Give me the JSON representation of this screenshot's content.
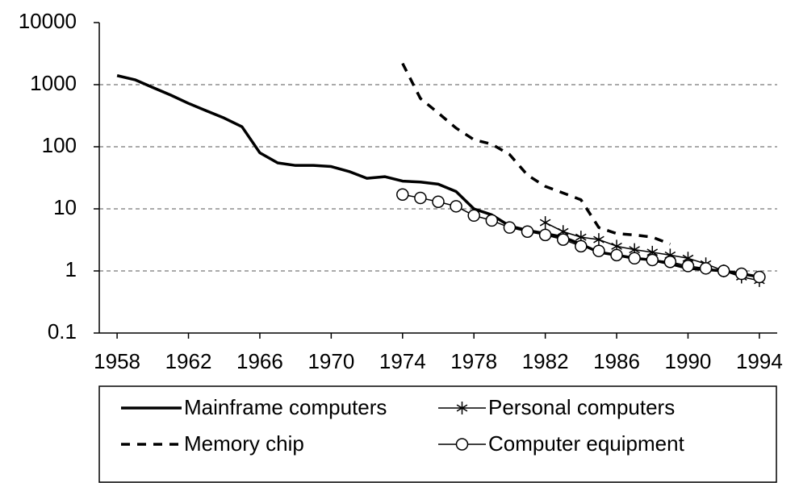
{
  "chart_data": {
    "type": "line",
    "ylog": true,
    "ylim": [
      0.1,
      10000
    ],
    "yticks": [
      0.1,
      1,
      10,
      100,
      1000,
      10000
    ],
    "grid": true,
    "xlim": [
      1957,
      1995
    ],
    "xticks": [
      1958,
      1962,
      1966,
      1970,
      1974,
      1978,
      1982,
      1986,
      1990,
      1994
    ],
    "legend": "bottom",
    "series": [
      {
        "name": "Mainframe computers",
        "color": "#000000",
        "line_style": "solid",
        "marker": "none",
        "x": [
          1958,
          1959,
          1960,
          1961,
          1962,
          1963,
          1964,
          1965,
          1966,
          1967,
          1968,
          1969,
          1970,
          1971,
          1972,
          1973,
          1974,
          1975,
          1976,
          1977,
          1978,
          1979,
          1980,
          1981,
          1982,
          1983,
          1984,
          1985,
          1986,
          1987,
          1988,
          1989,
          1990,
          1991,
          1992,
          1993,
          1994
        ],
        "values": [
          1400,
          1200,
          900,
          680,
          500,
          380,
          290,
          210,
          80,
          55,
          50,
          50,
          48,
          40,
          31,
          33,
          28,
          27,
          25,
          19,
          10,
          8,
          5.3,
          4.5,
          4,
          3.5,
          2.7,
          2,
          1.8,
          1.6,
          1.5,
          1.3,
          1.1,
          1.05,
          1,
          0.9,
          0.8
        ]
      },
      {
        "name": "Personal computers",
        "color": "#000000",
        "line_style": "thin",
        "marker": "star",
        "x": [
          1982,
          1983,
          1984,
          1985,
          1986,
          1987,
          1988,
          1989,
          1990,
          1991,
          1992,
          1993,
          1994
        ],
        "values": [
          6,
          4.3,
          3.5,
          3.2,
          2.5,
          2.2,
          2,
          1.8,
          1.6,
          1.3,
          1,
          0.8,
          0.7
        ]
      },
      {
        "name": "Memory chip",
        "color": "#000000",
        "line_style": "dashed",
        "marker": "none",
        "x": [
          1974,
          1975,
          1976,
          1977,
          1978,
          1979,
          1980,
          1981,
          1982,
          1983,
          1984,
          1985,
          1986,
          1987,
          1988,
          1989
        ],
        "values": [
          2200,
          600,
          350,
          200,
          130,
          110,
          75,
          35,
          23,
          18,
          14,
          5,
          4,
          3.8,
          3.5,
          2.7
        ]
      },
      {
        "name": "Computer equipment",
        "color": "#000000",
        "line_style": "thin",
        "marker": "circle",
        "x": [
          1974,
          1975,
          1976,
          1977,
          1978,
          1979,
          1980,
          1981,
          1982,
          1983,
          1984,
          1985,
          1986,
          1987,
          1988,
          1989,
          1990,
          1991,
          1992,
          1993,
          1994
        ],
        "values": [
          17,
          15,
          13,
          11,
          7.8,
          6.5,
          5,
          4.3,
          3.8,
          3.2,
          2.5,
          2.1,
          1.8,
          1.6,
          1.5,
          1.4,
          1.2,
          1.1,
          1,
          0.9,
          0.8
        ]
      }
    ]
  }
}
